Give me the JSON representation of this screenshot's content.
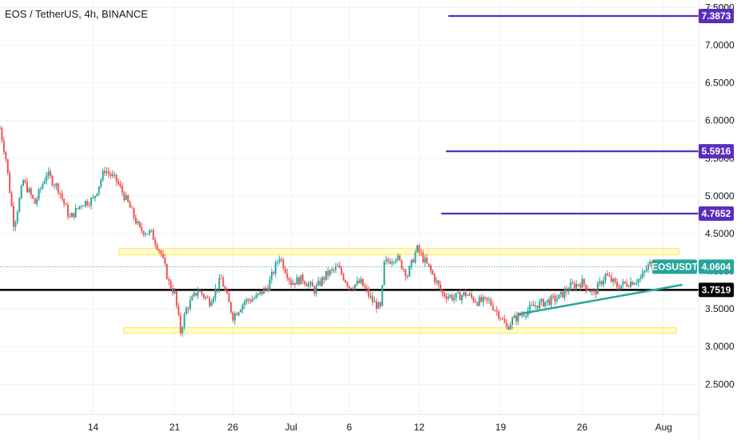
{
  "header": {
    "title": "EOS / TetherUS, 4h, BINANCE",
    "unit": "USDT"
  },
  "chart_data": {
    "type": "candlestick",
    "symbol": "EOSUSDT",
    "last_price": 4.0604,
    "ylim": [
      2.1,
      7.6
    ],
    "y_ticks": [
      {
        "value": 2.5,
        "label": "2.5000"
      },
      {
        "value": 3.0,
        "label": "3.0000"
      },
      {
        "value": 3.5,
        "label": "3.5000"
      },
      {
        "value": 4.0,
        "label": "4.0000"
      },
      {
        "value": 4.5,
        "label": "4.5000"
      },
      {
        "value": 5.0,
        "label": "5.0000"
      },
      {
        "value": 5.5,
        "label": "5.5000"
      },
      {
        "value": 6.0,
        "label": "6.0000"
      },
      {
        "value": 6.5,
        "label": "6.5000"
      },
      {
        "value": 7.0,
        "label": "7.0000"
      },
      {
        "value": 7.5,
        "label": "7.5000"
      }
    ],
    "x_ticks": [
      "14",
      "21",
      "26",
      "Jul",
      "6",
      "12",
      "19",
      "26",
      "Aug"
    ],
    "x_tick_days": [
      14,
      21,
      26,
      31,
      36,
      42,
      49,
      56,
      63
    ],
    "day_range": [
      6,
      66
    ],
    "horizontal_levels": [
      {
        "value": 7.3873,
        "label": "7.3873",
        "color": "#5b2dbd",
        "from_day": 44.5
      },
      {
        "value": 5.5916,
        "label": "5.5916",
        "color": "#5b2dbd",
        "from_day": 44.3
      },
      {
        "value": 4.7652,
        "label": "4.7652",
        "color": "#5b2dbd",
        "from_day": 43.9
      },
      {
        "value": 3.7519,
        "label": "3.7519",
        "color": "#000000",
        "from_day": 6
      }
    ],
    "zones": [
      {
        "from_day": 16.2,
        "to_day": 64.3,
        "low": 4.22,
        "high": 4.3,
        "color": "#ffeb3b"
      },
      {
        "from_day": 16.6,
        "to_day": 64.1,
        "low": 3.18,
        "high": 3.25,
        "color": "#ffeb3b"
      }
    ],
    "trendline": {
      "from": [
        50.5,
        3.43
      ],
      "to": [
        64.6,
        3.82
      ],
      "color": "#26a69a"
    },
    "last_price_tag": {
      "label": "EOSUSDT",
      "value_label": "4.0604",
      "color": "#26a69a"
    },
    "key_points": [
      [
        6.0,
        5.9
      ],
      [
        6.5,
        5.5
      ],
      [
        7.2,
        4.6
      ],
      [
        8.0,
        5.2
      ],
      [
        9.0,
        4.9
      ],
      [
        10.0,
        5.3
      ],
      [
        11.0,
        5.1
      ],
      [
        12.0,
        4.7
      ],
      [
        13.0,
        4.9
      ],
      [
        14.0,
        4.95
      ],
      [
        15.0,
        5.35
      ],
      [
        16.0,
        5.2
      ],
      [
        17.0,
        4.9
      ],
      [
        18.0,
        4.55
      ],
      [
        19.0,
        4.5
      ],
      [
        19.8,
        4.25
      ],
      [
        20.5,
        3.85
      ],
      [
        21.0,
        3.7
      ],
      [
        21.5,
        3.2
      ],
      [
        22.0,
        3.5
      ],
      [
        23.0,
        3.75
      ],
      [
        24.0,
        3.6
      ],
      [
        25.0,
        3.9
      ],
      [
        26.0,
        3.4
      ],
      [
        27.0,
        3.6
      ],
      [
        28.0,
        3.65
      ],
      [
        29.0,
        3.8
      ],
      [
        30.0,
        4.2
      ],
      [
        31.0,
        3.85
      ],
      [
        32.0,
        3.9
      ],
      [
        33.0,
        3.75
      ],
      [
        34.0,
        3.95
      ],
      [
        35.0,
        4.05
      ],
      [
        36.0,
        3.8
      ],
      [
        37.0,
        3.85
      ],
      [
        38.0,
        3.6
      ],
      [
        38.7,
        3.5
      ],
      [
        39.0,
        4.1
      ],
      [
        40.0,
        4.2
      ],
      [
        41.0,
        3.95
      ],
      [
        41.8,
        4.3
      ],
      [
        43.0,
        4.0
      ],
      [
        44.0,
        3.7
      ],
      [
        45.0,
        3.65
      ],
      [
        46.0,
        3.7
      ],
      [
        47.0,
        3.6
      ],
      [
        48.0,
        3.6
      ],
      [
        49.0,
        3.4
      ],
      [
        49.5,
        3.25
      ],
      [
        50.0,
        3.35
      ],
      [
        51.0,
        3.45
      ],
      [
        52.0,
        3.55
      ],
      [
        53.0,
        3.6
      ],
      [
        54.0,
        3.65
      ],
      [
        55.0,
        3.8
      ],
      [
        56.0,
        3.85
      ],
      [
        57.0,
        3.7
      ],
      [
        58.0,
        3.95
      ],
      [
        59.0,
        3.8
      ],
      [
        60.0,
        3.85
      ],
      [
        61.0,
        3.9
      ],
      [
        61.8,
        4.1
      ],
      [
        62.2,
        4.0604
      ]
    ]
  }
}
